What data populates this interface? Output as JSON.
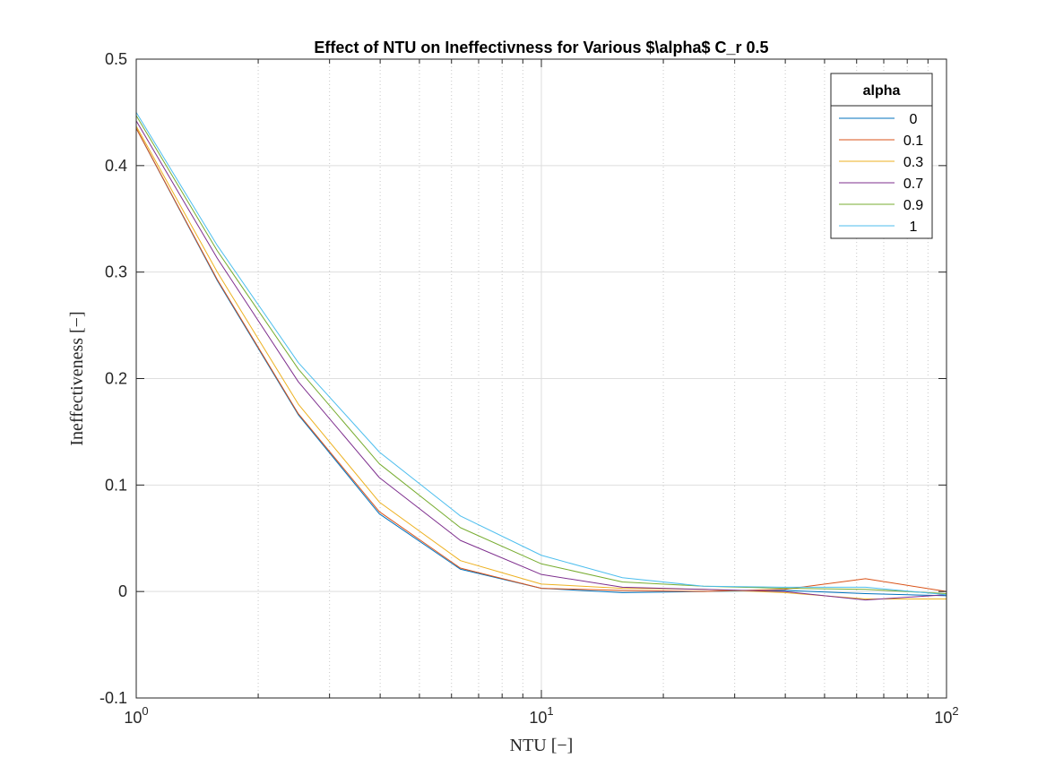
{
  "chart_data": {
    "type": "line",
    "title": "Effect of NTU on Ineffectivness for Various $\\alpha$ C_r 0.5",
    "xlabel": "NTU [−]",
    "ylabel": "Ineffectiveness [−]",
    "xscale": "log",
    "xlim": [
      1,
      100
    ],
    "ylim": [
      -0.1,
      0.5
    ],
    "xticks": [
      1,
      10,
      100
    ],
    "xtick_labels": [
      {
        "base": "10",
        "exp": "0"
      },
      {
        "base": "10",
        "exp": "1"
      },
      {
        "base": "10",
        "exp": "2"
      }
    ],
    "yticks": [
      -0.1,
      0,
      0.1,
      0.2,
      0.3,
      0.4,
      0.5
    ],
    "ytick_labels": [
      "-0.1",
      "0",
      "0.1",
      "0.2",
      "0.3",
      "0.4",
      "0.5"
    ],
    "grid": true,
    "minor_grid_x": true,
    "legend": {
      "title": "alpha",
      "placement": "top-right"
    },
    "x": [
      1,
      1.585,
      2.512,
      3.981,
      6.31,
      10,
      15.85,
      25.12,
      39.81,
      63.1,
      100
    ],
    "series": [
      {
        "name": "0",
        "color": "#0072BD",
        "values": [
          0.435,
          0.292,
          0.166,
          0.073,
          0.021,
          0.003,
          -0.001,
          0.0,
          0.001,
          -0.002,
          -0.004
        ]
      },
      {
        "name": "0.1",
        "color": "#D95319",
        "values": [
          0.435,
          0.293,
          0.167,
          0.075,
          0.022,
          0.003,
          0.001,
          0.0,
          0.002,
          0.012,
          0.0
        ]
      },
      {
        "name": "0.3",
        "color": "#EDB120",
        "values": [
          0.437,
          0.3,
          0.176,
          0.084,
          0.029,
          0.007,
          0.003,
          0.002,
          -0.001,
          -0.007,
          -0.007
        ]
      },
      {
        "name": "0.7",
        "color": "#7E2F8E",
        "values": [
          0.442,
          0.313,
          0.197,
          0.107,
          0.048,
          0.016,
          0.004,
          0.002,
          0.0,
          -0.008,
          -0.003
        ]
      },
      {
        "name": "0.9",
        "color": "#77AC30",
        "values": [
          0.447,
          0.32,
          0.209,
          0.12,
          0.06,
          0.026,
          0.009,
          0.005,
          0.003,
          0.002,
          -0.002
        ]
      },
      {
        "name": "1",
        "color": "#4DBEEE",
        "values": [
          0.45,
          0.325,
          0.215,
          0.131,
          0.071,
          0.034,
          0.013,
          0.005,
          0.004,
          0.004,
          -0.003
        ]
      }
    ]
  }
}
